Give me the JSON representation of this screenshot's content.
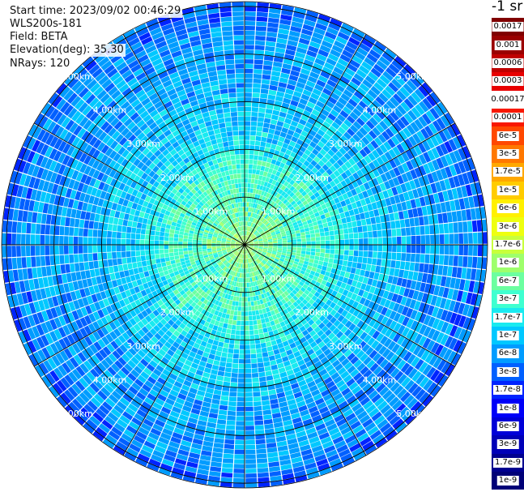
{
  "header": {
    "start_time": "Start time: 2023/09/02 00:46:29",
    "instrument": "WLS200s-181",
    "field": "Field: BETA",
    "elevation": "Elevation(deg): 35.30",
    "nrays": "NRays: 120"
  },
  "colorbar": {
    "title": "-1 sr",
    "levels": [
      {
        "label": "1e-9",
        "color": "#000077"
      },
      {
        "label": "1.7e-9",
        "color": "#00008f"
      },
      {
        "label": "3e-9",
        "color": "#0000b8"
      },
      {
        "label": "6e-9",
        "color": "#0000d8"
      },
      {
        "label": "1e-8",
        "color": "#0000f8"
      },
      {
        "label": "1.7e-8",
        "color": "#0024ff"
      },
      {
        "label": "3e-8",
        "color": "#0060ff"
      },
      {
        "label": "6e-8",
        "color": "#009cff"
      },
      {
        "label": "1e-7",
        "color": "#00c8ff"
      },
      {
        "label": "1.7e-7",
        "color": "#19eaf0"
      },
      {
        "label": "3e-7",
        "color": "#3fffd0"
      },
      {
        "label": "6e-7",
        "color": "#6cffa0"
      },
      {
        "label": "1e-6",
        "color": "#9eff6c"
      },
      {
        "label": "1.7e-6",
        "color": "#c8ff3c"
      },
      {
        "label": "3e-6",
        "color": "#eeff10"
      },
      {
        "label": "6e-6",
        "color": "#fff000"
      },
      {
        "label": "1e-5",
        "color": "#ffcc00"
      },
      {
        "label": "1.7e-5",
        "color": "#ffa800"
      },
      {
        "label": "3e-5",
        "color": "#ff7800"
      },
      {
        "label": "6e-5",
        "color": "#ff4800"
      },
      {
        "label": "0.0001",
        "color": "#f81800"
      },
      {
        "label": "0.00017",
        "color": "#ffffff"
      },
      {
        "label": "0.0003",
        "color": "#e80000"
      },
      {
        "label": "0.0006",
        "color": "#c00000"
      },
      {
        "label": "0.001",
        "color": "#9a0000"
      },
      {
        "label": "0.0017",
        "color": "#800000"
      }
    ]
  },
  "chart_data": {
    "type": "heatmap",
    "subtype": "polar PPI scan",
    "field": "BETA",
    "elevation_deg": 35.3,
    "n_rays": 120,
    "range_rings_km": [
      1,
      2,
      3,
      4,
      5
    ],
    "ring_labels": [
      "1.00km",
      "2.00km",
      "3.00km",
      "4.00km",
      "5.00km"
    ],
    "max_range_km": 5.1,
    "radial_lines_deg": [
      0,
      30,
      60,
      90,
      120,
      150,
      180,
      210,
      240,
      270,
      300,
      330
    ],
    "ring_label_directions": [
      "upper-left",
      "upper-right",
      "lower-left",
      "lower-right"
    ],
    "color_levels": [
      "1e-9",
      "1.7e-9",
      "3e-9",
      "6e-9",
      "1e-8",
      "1.7e-8",
      "3e-8",
      "6e-8",
      "1e-7",
      "1.7e-7",
      "3e-7",
      "6e-7",
      "1e-6",
      "1.7e-6",
      "3e-6",
      "6e-6",
      "1e-5",
      "1.7e-5",
      "3e-5",
      "6e-5",
      "0.0001",
      "0.00017",
      "0.0003",
      "0.0006",
      "0.001",
      "0.0017"
    ],
    "radial_profile": [
      {
        "range_km": 0.0,
        "level": "1e-6"
      },
      {
        "range_km": 0.5,
        "level": "6e-7"
      },
      {
        "range_km": 1.0,
        "level": "3e-7"
      },
      {
        "range_km": 1.5,
        "level": "3e-7"
      },
      {
        "range_km": 2.0,
        "level": "1.7e-7"
      },
      {
        "range_km": 2.5,
        "level": "1e-7"
      },
      {
        "range_km": 3.0,
        "level": "1e-7"
      },
      {
        "range_km": 3.5,
        "level": "6e-8"
      },
      {
        "range_km": 4.0,
        "level": "6e-8"
      },
      {
        "range_km": 4.5,
        "level": "6e-8"
      },
      {
        "range_km": 5.0,
        "level": "3e-8"
      }
    ]
  }
}
